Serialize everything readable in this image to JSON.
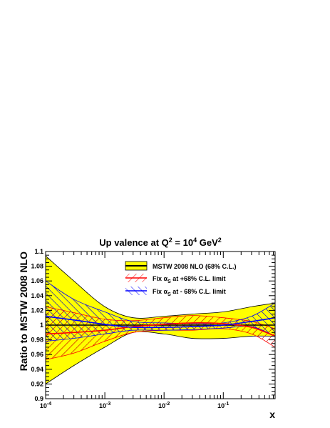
{
  "chart_data": {
    "type": "line",
    "title": {
      "main": "Up valence at Q",
      "sup1": "2",
      "mid": " = 10",
      "sup2": "4",
      "unit": " GeV",
      "sup3": "2"
    },
    "xlabel": "x",
    "ylabel": "Ratio to MSTW 2008 NLO",
    "x_scale": "log",
    "xlim": [
      0.0001,
      0.75
    ],
    "ylim": [
      0.9,
      1.1
    ],
    "x_ticks": [
      {
        "value": 0.0001,
        "base": "10",
        "exp": "-4"
      },
      {
        "value": 0.001,
        "base": "10",
        "exp": "-3"
      },
      {
        "value": 0.01,
        "base": "10",
        "exp": "-2"
      },
      {
        "value": 0.1,
        "base": "10",
        "exp": "-1"
      }
    ],
    "y_ticks": [
      "0.9",
      "0.92",
      "0.94",
      "0.96",
      "0.98",
      "1",
      "1.02",
      "1.04",
      "1.06",
      "1.08",
      "1.1"
    ],
    "grid": false,
    "legend_position": "top-right",
    "colors": {
      "band": "#ffff00",
      "fix_plus": "#ff0000",
      "fix_minus": "#0000ff",
      "axis": "#000000"
    },
    "series": [
      {
        "name": "MSTW 2008 NLO (68% C.L.)",
        "style": "filled-band",
        "x": [
          0.0001,
          0.0003,
          0.001,
          0.003,
          0.01,
          0.03,
          0.1,
          0.3,
          0.75
        ],
        "upper": [
          1.094,
          1.06,
          1.025,
          1.01,
          1.012,
          1.015,
          1.018,
          1.025,
          1.03
        ],
        "lower": [
          0.92,
          0.945,
          0.97,
          0.99,
          0.988,
          0.982,
          0.982,
          0.985,
          0.985
        ],
        "central": [
          1.0,
          1.0,
          1.0,
          1.0,
          1.0,
          1.0,
          1.0,
          1.0,
          1.0
        ]
      },
      {
        "name": "Fix αS at +68% C.L. limit",
        "legend_label": {
          "pre": "Fix ",
          "alpha": "α",
          "sub": "S",
          "post": " at +68% C.L. limit"
        },
        "style": "hatched-band",
        "x": [
          0.0001,
          0.0003,
          0.001,
          0.003,
          0.01,
          0.03,
          0.1,
          0.3,
          0.75
        ],
        "upper": [
          1.025,
          1.017,
          1.008,
          1.006,
          1.01,
          1.013,
          1.01,
          1.005,
          0.995
        ],
        "lower": [
          0.953,
          0.962,
          0.978,
          0.99,
          0.993,
          0.993,
          0.995,
          0.988,
          0.97
        ],
        "central": [
          0.988,
          0.99,
          0.993,
          0.998,
          1.001,
          1.003,
          1.002,
          0.997,
          0.985
        ]
      },
      {
        "name": "Fix αS at - 68% C.L. limit",
        "legend_label": {
          "pre": "Fix ",
          "alpha": "α",
          "sub": "S",
          "post": " at - 68% C.L. limit"
        },
        "style": "hatched-band",
        "x": [
          0.0001,
          0.0003,
          0.001,
          0.003,
          0.01,
          0.03,
          0.1,
          0.3,
          0.75
        ],
        "upper": [
          1.06,
          1.035,
          1.018,
          1.005,
          1.003,
          1.002,
          1.003,
          1.012,
          1.03
        ],
        "lower": [
          0.978,
          0.982,
          0.988,
          0.993,
          0.993,
          0.994,
          0.996,
          0.998,
          0.985
        ],
        "central": [
          1.012,
          1.007,
          1.001,
          0.997,
          0.997,
          0.998,
          1.0,
          1.005,
          1.01
        ]
      }
    ]
  }
}
